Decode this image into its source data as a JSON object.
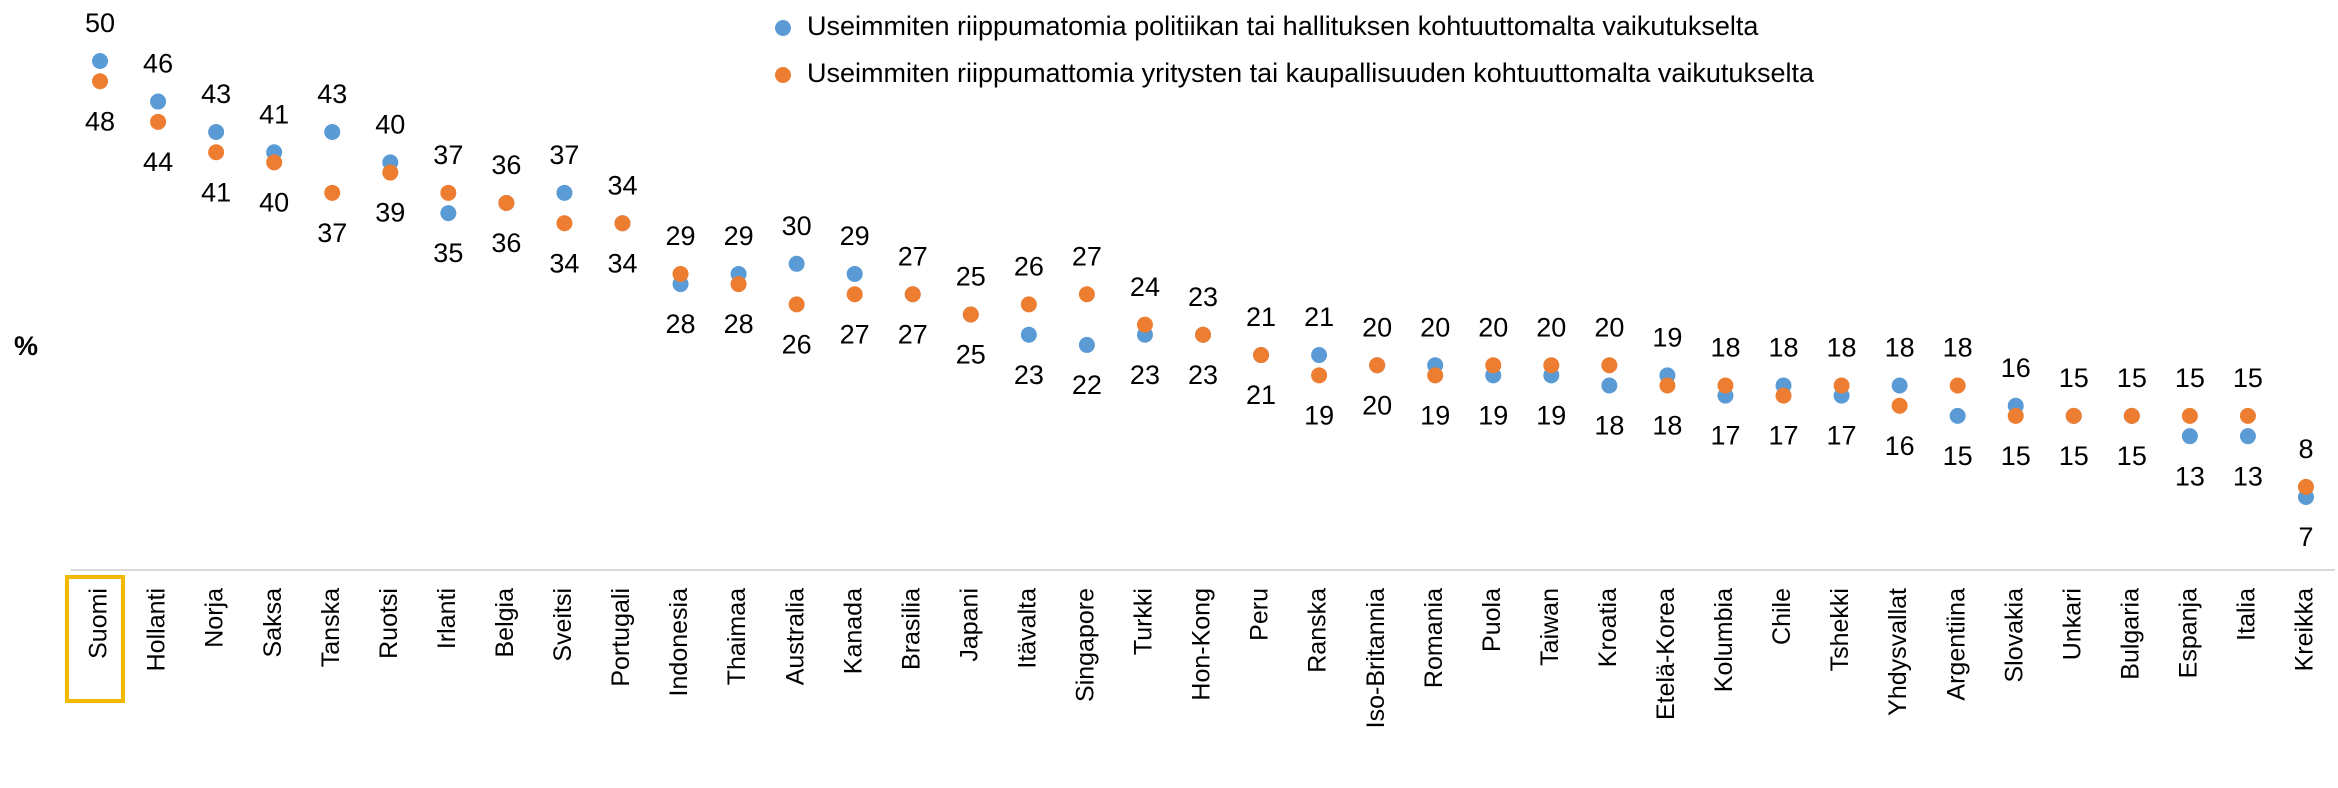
{
  "chart_data": {
    "type": "dot",
    "y_label": "%",
    "categories": [
      "Suomi",
      "Hollanti",
      "Norja",
      "Saksa",
      "Tanska",
      "Ruotsi",
      "Irlanti",
      "Belgia",
      "Sveitsi",
      "Portugali",
      "Indonesia",
      "Thaimaa",
      "Australia",
      "Kanada",
      "Brasilia",
      "Japani",
      "Itävalta",
      "Singapore",
      "Turkki",
      "Hon-Kong",
      "Peru",
      "Ranska",
      "Iso-Britannia",
      "Romania",
      "Puola",
      "Taiwan",
      "Kroatia",
      "Etelä-Korea",
      "Kolumbia",
      "Chile",
      "Tshekki",
      "Yhdysvallat",
      "Argentiina",
      "Slovakia",
      "Unkari",
      "Bulgaria",
      "Espanja",
      "Italia",
      "Kreikka"
    ],
    "series": [
      {
        "name": "Useimmiten riippumatomia politiikan tai hallituksen kohtuuttomalta vaikutukselta",
        "color": "#5b9bd5",
        "values": [
          50,
          46,
          43,
          41,
          43,
          40,
          35,
          36,
          37,
          34,
          28,
          29,
          30,
          29,
          27,
          25,
          23,
          22,
          23,
          23,
          21,
          21,
          20,
          20,
          19,
          19,
          18,
          19,
          17,
          18,
          17,
          18,
          15,
          16,
          15,
          15,
          13,
          13,
          7
        ]
      },
      {
        "name": "Useimmiten riippumattomia yritysten tai kaupallisuuden kohtuuttomalta vaikutukselta",
        "color": "#ed7d31",
        "values": [
          48,
          44,
          41,
          40,
          37,
          39,
          37,
          36,
          34,
          34,
          29,
          28,
          26,
          27,
          27,
          25,
          26,
          27,
          24,
          23,
          21,
          19,
          20,
          19,
          20,
          20,
          20,
          18,
          18,
          17,
          18,
          16,
          18,
          15,
          15,
          15,
          15,
          15,
          8
        ]
      }
    ],
    "ylim": [
      0,
      50
    ],
    "legend": "top"
  }
}
